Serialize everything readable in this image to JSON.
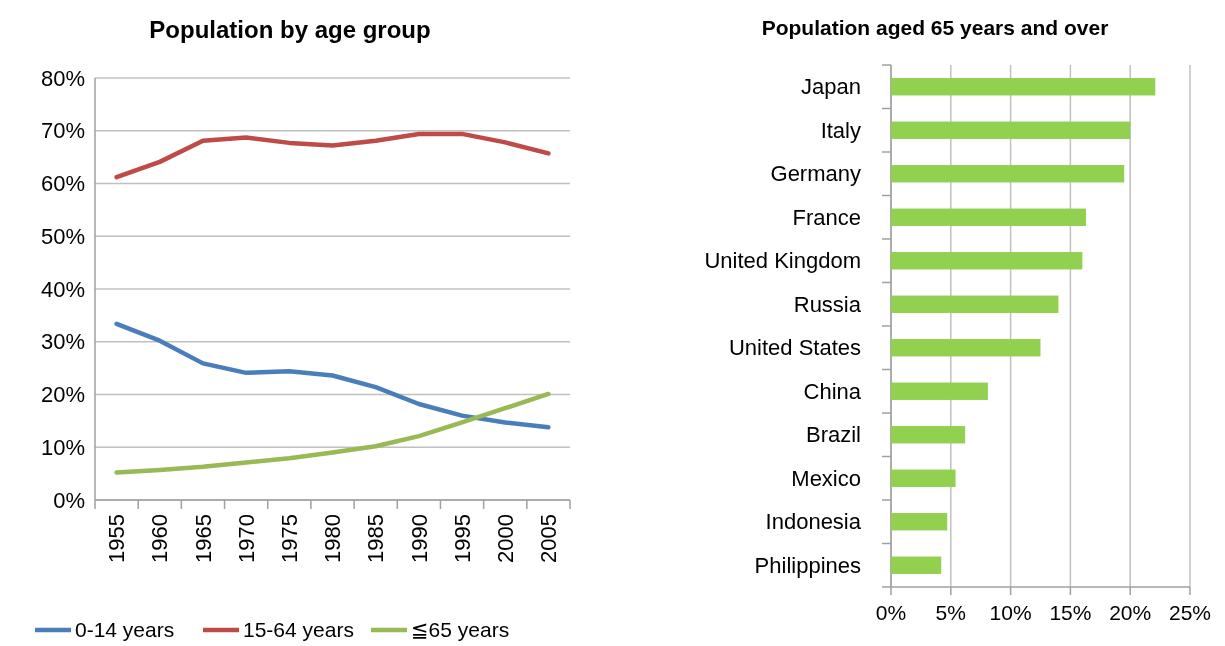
{
  "chart_data": [
    {
      "type": "line",
      "title": "Population by age group",
      "categories": [
        "1955",
        "1960",
        "1965",
        "1970",
        "1975",
        "1980",
        "1985",
        "1990",
        "1995",
        "2000",
        "2005"
      ],
      "series": [
        {
          "name": "0-14 years",
          "color": "#4a7ebb",
          "values": [
            33.4,
            30.2,
            25.9,
            24.1,
            24.4,
            23.6,
            21.4,
            18.2,
            16.0,
            14.7,
            13.8
          ]
        },
        {
          "name": "15-64 years",
          "color": "#be4b48",
          "values": [
            61.2,
            64.1,
            68.1,
            68.7,
            67.7,
            67.2,
            68.1,
            69.4,
            69.4,
            67.8,
            65.7
          ]
        },
        {
          "name": "≦65 years",
          "color": "#98b954",
          "values": [
            5.2,
            5.7,
            6.3,
            7.1,
            7.9,
            9.0,
            10.2,
            12.1,
            14.7,
            17.4,
            20.1
          ]
        }
      ],
      "ylim": [
        0,
        80
      ],
      "yticks": [
        {
          "value": 0,
          "label": "0%"
        },
        {
          "value": 10,
          "label": "10%"
        },
        {
          "value": 20,
          "label": "20%"
        },
        {
          "value": 30,
          "label": "30%"
        },
        {
          "value": 40,
          "label": "40%"
        },
        {
          "value": 50,
          "label": "50%"
        },
        {
          "value": 60,
          "label": "60%"
        },
        {
          "value": 70,
          "label": "70%"
        },
        {
          "value": 80,
          "label": "80%"
        }
      ],
      "grid": "y",
      "legend": "bottom",
      "marker": "none",
      "line_style": "solid"
    },
    {
      "type": "bar",
      "orientation": "horizontal",
      "title": "Population aged 65 years and over",
      "categories": [
        "Japan",
        "Italy",
        "Germany",
        "France",
        "United Kingdom",
        "Russia",
        "United States",
        "China",
        "Brazil",
        "Mexico",
        "Indonesia",
        "Philippines"
      ],
      "values": [
        22.1,
        20.0,
        19.5,
        16.3,
        16.0,
        14.0,
        12.5,
        8.1,
        6.2,
        5.4,
        4.7,
        4.2
      ],
      "color": "#92d050",
      "xlim": [
        0,
        25
      ],
      "xticks": [
        {
          "value": 0,
          "label": "0%"
        },
        {
          "value": 5,
          "label": "5%"
        },
        {
          "value": 10,
          "label": "10%"
        },
        {
          "value": 15,
          "label": "15%"
        },
        {
          "value": 20,
          "label": "20%"
        },
        {
          "value": 25,
          "label": "25%"
        }
      ],
      "grid": "x"
    }
  ]
}
